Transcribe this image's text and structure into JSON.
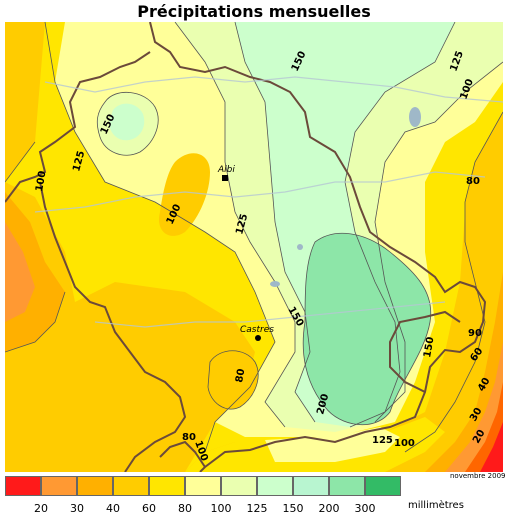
{
  "title": "Précipitations mensuelles",
  "date_note": "novembre 2009",
  "unit": "millimètres",
  "cities": [
    {
      "name": "Albi"
    },
    {
      "name": "Castres"
    }
  ],
  "contour_labels": [
    "150",
    "125",
    "100",
    "125",
    "100",
    "150",
    "100",
    "125",
    "150",
    "80",
    "200",
    "80",
    "100",
    "125",
    "100",
    "150",
    "90",
    "60",
    "40",
    "30",
    "20",
    "125",
    "100",
    "80"
  ],
  "legend": {
    "colors": [
      "#ff1a1a",
      "#ff6600",
      "#ff9933",
      "#ffb000",
      "#ffcc00",
      "#ffe600",
      "#ffff99",
      "#eaffb0",
      "#ccffcc",
      "#b8f5d0",
      "#8de6a8",
      "#33bb66"
    ],
    "ticks": [
      "20",
      "30",
      "40",
      "60",
      "80",
      "100",
      "125",
      "150",
      "200",
      "300"
    ]
  },
  "colors": {
    "land_default": "#ffe600",
    "border": "#6b4a3a"
  }
}
